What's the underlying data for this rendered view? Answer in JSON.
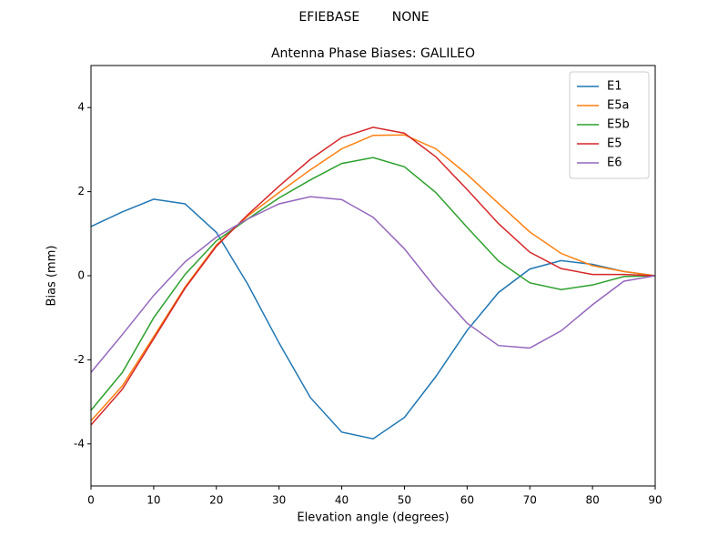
{
  "chart_data": {
    "type": "line",
    "suptitle": "EFIEBASE        NONE",
    "title": "Antenna Phase Biases: GALILEO",
    "xlabel": "Elevation angle (degrees)",
    "ylabel": "Bias (mm)",
    "x": [
      0,
      5,
      10,
      15,
      20,
      25,
      30,
      35,
      40,
      45,
      50,
      55,
      60,
      65,
      70,
      75,
      80,
      85,
      90
    ],
    "xlim": [
      0,
      90
    ],
    "xticks": [
      0,
      10,
      20,
      30,
      40,
      50,
      60,
      70,
      80,
      90
    ],
    "ylim": [
      -5,
      5
    ],
    "yticks": [
      -4,
      -2,
      0,
      2,
      4
    ],
    "legend": "upper right",
    "series": [
      {
        "name": "E1",
        "color": "#1f77b4",
        "values": [
          1.17,
          1.52,
          1.82,
          1.71,
          1.03,
          -0.2,
          -1.6,
          -2.9,
          -3.72,
          -3.88,
          -3.37,
          -2.4,
          -1.3,
          -0.4,
          0.16,
          0.36,
          0.27,
          0.1,
          0
        ]
      },
      {
        "name": "E5a",
        "color": "#ff7f0e",
        "values": [
          -3.45,
          -2.62,
          -1.45,
          -0.27,
          0.73,
          1.42,
          1.98,
          2.52,
          3.02,
          3.34,
          3.35,
          3.02,
          2.41,
          1.72,
          1.04,
          0.53,
          0.24,
          0.1,
          0
        ]
      },
      {
        "name": "E5b",
        "color": "#2ca02c",
        "values": [
          -3.2,
          -2.3,
          -1.0,
          0.03,
          0.83,
          1.35,
          1.85,
          2.28,
          2.67,
          2.81,
          2.59,
          1.98,
          1.15,
          0.35,
          -0.17,
          -0.33,
          -0.22,
          -0.02,
          0
        ]
      },
      {
        "name": "E5",
        "color": "#d62728",
        "values": [
          -3.55,
          -2.7,
          -1.5,
          -0.3,
          0.7,
          1.45,
          2.13,
          2.77,
          3.29,
          3.53,
          3.39,
          2.83,
          2.05,
          1.24,
          0.56,
          0.17,
          0.03,
          0.03,
          0
        ]
      },
      {
        "name": "E6",
        "color": "#9467bd",
        "values": [
          -2.3,
          -1.4,
          -0.47,
          0.33,
          0.92,
          1.35,
          1.71,
          1.88,
          1.81,
          1.39,
          0.64,
          -0.3,
          -1.13,
          -1.66,
          -1.72,
          -1.31,
          -0.69,
          -0.13,
          0
        ]
      }
    ]
  }
}
